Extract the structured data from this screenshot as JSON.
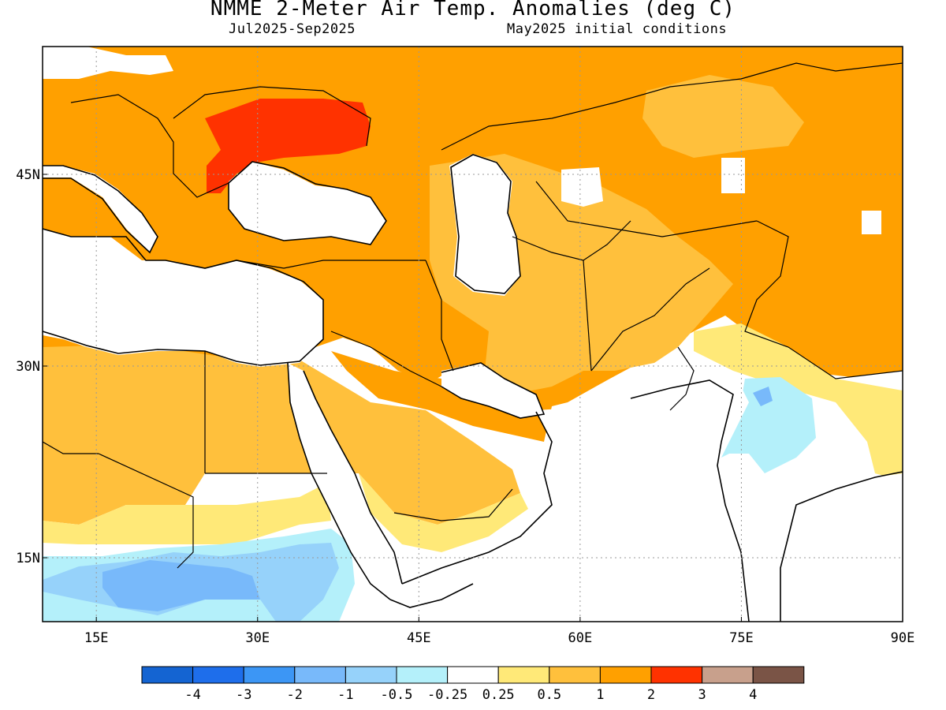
{
  "title": "NMME 2-Meter Air Temp. Anomalies (deg C)",
  "subtitle_left": "Jul2025-Sep2025",
  "subtitle_right": "May2025 initial conditions",
  "map": {
    "lon_range": [
      10,
      90
    ],
    "lat_range": [
      10,
      55
    ],
    "lon_ticks": [
      {
        "value": 15,
        "label": "15E"
      },
      {
        "value": 30,
        "label": "30E"
      },
      {
        "value": 45,
        "label": "45E"
      },
      {
        "value": 60,
        "label": "60E"
      },
      {
        "value": 75,
        "label": "75E"
      },
      {
        "value": 90,
        "label": "90E"
      }
    ],
    "lat_ticks": [
      {
        "value": 45,
        "label": "45N"
      },
      {
        "value": 30,
        "label": "30N"
      },
      {
        "value": 15,
        "label": "15N"
      }
    ],
    "gridlines": "dotted"
  },
  "colorbar": {
    "colors": [
      "#1464d2",
      "#1e6eeb",
      "#3c96f5",
      "#78b9fa",
      "#96d2fa",
      "#b4f0fa",
      "#ffffff",
      "#ffe978",
      "#ffc03c",
      "#ffa000",
      "#ff3200",
      "#c8a08c",
      "#7a5446"
    ],
    "labels": [
      "-4",
      "-3",
      "-2",
      "-1",
      "-0.5",
      "-0.25",
      "0.25",
      "0.5",
      "1",
      "2",
      "3",
      "4"
    ]
  }
}
